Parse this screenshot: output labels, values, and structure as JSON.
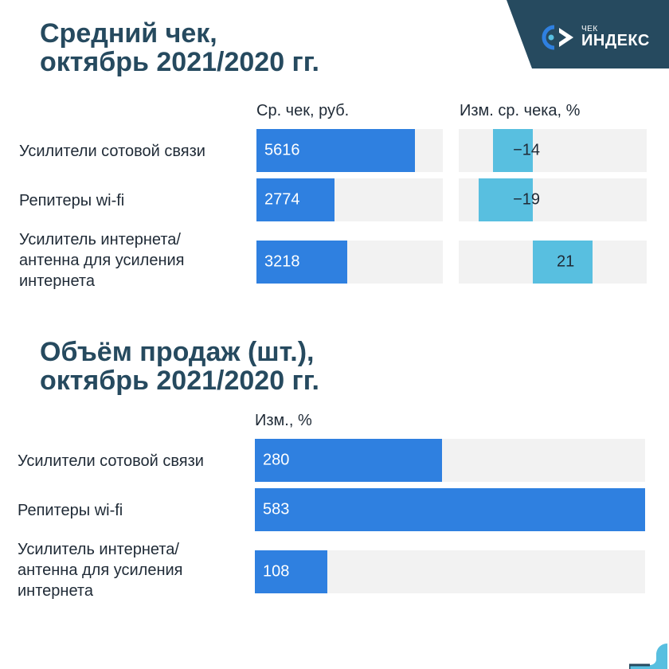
{
  "logo": {
    "small": "ЧЕК",
    "big": "ИНДЕКС",
    "colors": {
      "panel": "#264a5f",
      "mark": "#2f80e0",
      "accent": "#58bfe0"
    }
  },
  "chart_data": [
    {
      "type": "bar",
      "orientation": "horizontal",
      "title_lines": [
        "Средний чек,",
        "октябрь 2021/2020 гг."
      ],
      "categories": [
        [
          "Усилители сотовой связи"
        ],
        [
          "Репитеры wi-fi"
        ],
        [
          "Усилитель интернета/",
          "антенна для усиления",
          "интернета"
        ]
      ],
      "series": [
        {
          "name": "Ср. чек, руб.",
          "values": [
            5616,
            2774,
            3218
          ],
          "labels": [
            "5616",
            "2774",
            "3218"
          ],
          "xlim": [
            0,
            6600
          ],
          "color": "#2f80e0"
        },
        {
          "name": "Изм. ср. чека, %",
          "values": [
            -14,
            -19,
            21
          ],
          "labels": [
            "−14",
            "−19",
            "21"
          ],
          "xlim": [
            -26,
            40
          ],
          "color": "#58bfe0"
        }
      ]
    },
    {
      "type": "bar",
      "orientation": "horizontal",
      "title_lines": [
        "Объём продаж (шт.),",
        "октябрь 2021/2020 гг."
      ],
      "categories": [
        [
          "Усилители сотовой связи"
        ],
        [
          "Репитеры wi-fi"
        ],
        [
          "Усилитель интернета/",
          "антенна для усиления",
          "интернета"
        ]
      ],
      "series": [
        {
          "name": "Изм., %",
          "values": [
            280,
            583,
            108
          ],
          "labels": [
            "280",
            "583",
            "108"
          ],
          "xlim": [
            0,
            583
          ],
          "color": "#2f80e0"
        }
      ]
    }
  ]
}
